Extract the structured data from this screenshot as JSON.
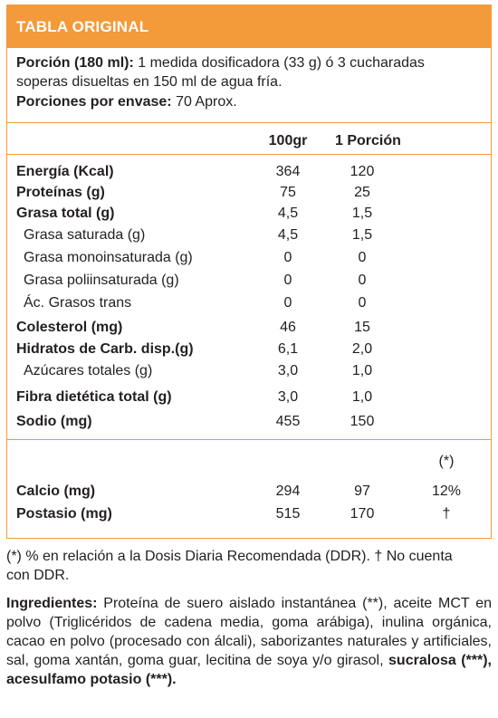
{
  "header": {
    "title": "TABLA ORIGINAL"
  },
  "serving": {
    "label": "Porción (180 ml):",
    "text1": " 1 medida dosificadora (33 g) ó 3 cucharadas",
    "text2": "soperas disueltas en 150 ml de agua fría.",
    "per_pack_label": "Porciones por envase:",
    "per_pack_value": " 70 Aprox."
  },
  "columns": {
    "col1": "100gr",
    "col2": "1 Porción"
  },
  "rows": [
    {
      "label": "Energía (Kcal)",
      "v100": "364",
      "vportion": "120",
      "bold": true,
      "indent": false
    },
    {
      "label": "Proteínas (g)",
      "v100": "75",
      "vportion": "25",
      "bold": true,
      "indent": false
    },
    {
      "label": "Grasa total (g)",
      "v100": "4,5",
      "vportion": "1,5",
      "bold": true,
      "indent": false
    },
    {
      "label": "Grasa saturada (g)",
      "v100": "4,5",
      "vportion": "1,5",
      "bold": false,
      "indent": true
    },
    {
      "label": "Grasa monoinsaturada (g)",
      "v100": "0",
      "vportion": "0",
      "bold": false,
      "indent": true
    },
    {
      "label": "Grasa poliinsaturada (g)",
      "v100": "0",
      "vportion": "0",
      "bold": false,
      "indent": true
    },
    {
      "label": "Ác. Grasos trans",
      "v100": "0",
      "vportion": "0",
      "bold": false,
      "indent": true
    },
    {
      "label": "Colesterol (mg)",
      "v100": "46",
      "vportion": "15",
      "bold": true,
      "indent": false
    },
    {
      "label": "Hidratos de Carb. disp.(g)",
      "v100": "6,1",
      "vportion": "2,0",
      "bold": true,
      "indent": false
    },
    {
      "label": "Azúcares totales (g)",
      "v100": "3,0",
      "vportion": "1,0",
      "bold": false,
      "indent": true
    },
    {
      "label": "Fibra dietética total (g)",
      "v100": "3,0",
      "vportion": "1,0",
      "bold": true,
      "indent": false
    },
    {
      "label": "Sodio (mg)",
      "v100": "455",
      "vportion": "150",
      "bold": true,
      "indent": false
    }
  ],
  "minerals_header": "(*)",
  "minerals": [
    {
      "label": "Calcio (mg)",
      "v100": "294",
      "vportion": "97",
      "ddr": "12%"
    },
    {
      "label": "Postasio (mg)",
      "v100": "515",
      "vportion": "170",
      "ddr": "†"
    }
  ],
  "footnote": {
    "line1": "(*) % en relación a la Dosis Diaria Recomendada (DDR). † No cuenta",
    "line2": "con DDR."
  },
  "ingredients": {
    "label": "Ingredientes:",
    "text": " Proteína de suero aislado instantánea (**), aceite MCT en polvo (Triglicéridos de cadena media, goma arábiga), inulina orgánica, cacao en polvo (procesado con álcali), saborizantes naturales y artificiales, sal, goma xantán, goma guar, lecitina de soya y/o girasol, ",
    "bold_tail": "sucralosa (***), acesulfamo potasio (***)."
  },
  "colors": {
    "accent": "#f39a3a",
    "text": "#231f20"
  }
}
